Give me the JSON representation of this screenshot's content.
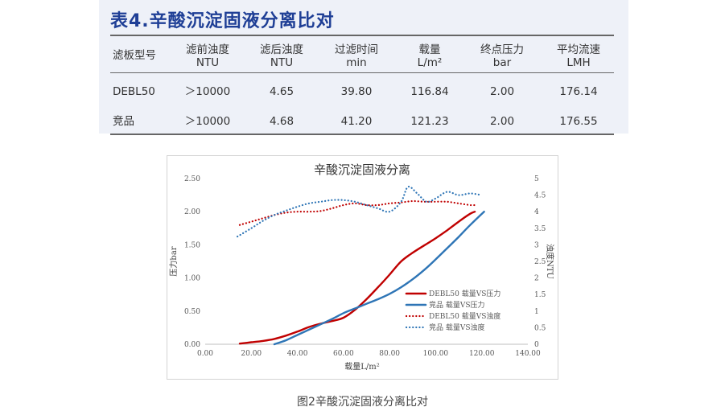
{
  "table": {
    "title": "表4.辛酸沉淀固液分离比对",
    "headers": [
      [
        "滤板型号"
      ],
      [
        "滤前浊度",
        "NTU"
      ],
      [
        "滤后浊度",
        "NTU"
      ],
      [
        "过滤时间",
        "min"
      ],
      [
        "载量",
        "L/m²"
      ],
      [
        "终点压力",
        "bar"
      ],
      [
        "平均流速",
        "LMH"
      ]
    ],
    "rows": [
      [
        "DEBL50",
        "＞10000",
        "4.65",
        "39.80",
        "116.84",
        "2.00",
        "176.14"
      ],
      [
        "竞品",
        "＞10000",
        "4.68",
        "41.20",
        "121.23",
        "2.00",
        "176.55"
      ]
    ]
  },
  "chart_data": {
    "type": "line",
    "title": "辛酸沉淀固液分离",
    "xlabel": "载量L/m²",
    "ylabel": "压力bar",
    "y2label": "浊度NTU",
    "xlim": [
      0,
      140
    ],
    "ylim": [
      0,
      2.5
    ],
    "y2lim": [
      0,
      5
    ],
    "x_ticks": [
      "0.00",
      "20.00",
      "40.00",
      "60.00",
      "80.00",
      "100.00",
      "120.00",
      "140.00"
    ],
    "y_ticks": [
      "0.00",
      "0.50",
      "1.00",
      "1.50",
      "2.00",
      "2.50"
    ],
    "y2_ticks": [
      "0",
      "0.5",
      "1",
      "1.5",
      "2",
      "2.5",
      "3",
      "3.5",
      "4",
      "4.5",
      "5"
    ],
    "grid": false,
    "legend_position": "right",
    "series": [
      {
        "name": "DEBL50 载量VS压力",
        "axis": "left",
        "style": "solid",
        "color": "#c00000",
        "x": [
          15,
          20,
          25,
          30,
          35,
          40,
          45,
          50,
          55,
          60,
          65,
          70,
          75,
          80,
          85,
          90,
          95,
          100,
          105,
          110,
          115,
          117
        ],
        "y": [
          0.01,
          0.03,
          0.05,
          0.08,
          0.13,
          0.19,
          0.26,
          0.31,
          0.35,
          0.4,
          0.52,
          0.68,
          0.86,
          1.05,
          1.25,
          1.38,
          1.49,
          1.6,
          1.72,
          1.85,
          1.97,
          2.0
        ]
      },
      {
        "name": "竞品 载量VS压力",
        "axis": "left",
        "style": "solid",
        "color": "#2e75b6",
        "x": [
          30,
          35,
          40,
          45,
          50,
          55,
          60,
          65,
          70,
          75,
          80,
          85,
          90,
          95,
          100,
          105,
          110,
          115,
          121
        ],
        "y": [
          0.0,
          0.06,
          0.14,
          0.22,
          0.3,
          0.38,
          0.47,
          0.54,
          0.61,
          0.68,
          0.76,
          0.86,
          0.98,
          1.12,
          1.28,
          1.45,
          1.62,
          1.8,
          2.0
        ]
      },
      {
        "name": "DEBL50 载量VS浊度",
        "axis": "right",
        "style": "dotted",
        "color": "#c00000",
        "x": [
          15,
          20,
          25,
          30,
          35,
          40,
          45,
          50,
          55,
          60,
          65,
          70,
          75,
          80,
          85,
          90,
          95,
          100,
          105,
          110,
          115,
          117
        ],
        "y": [
          3.6,
          3.7,
          3.8,
          3.9,
          3.97,
          4.0,
          4.0,
          4.02,
          4.1,
          4.2,
          4.25,
          4.2,
          4.2,
          4.25,
          4.28,
          4.32,
          4.3,
          4.3,
          4.3,
          4.25,
          4.2,
          4.2
        ]
      },
      {
        "name": "竞品 载量VS浊度",
        "axis": "right",
        "style": "dotted",
        "color": "#2e75b6",
        "x": [
          14,
          20,
          25,
          30,
          35,
          40,
          45,
          50,
          55,
          60,
          65,
          70,
          75,
          80,
          85,
          88,
          92,
          96,
          100,
          105,
          110,
          115,
          120
        ],
        "y": [
          3.25,
          3.5,
          3.72,
          3.9,
          4.03,
          4.15,
          4.25,
          4.3,
          4.35,
          4.35,
          4.3,
          4.2,
          4.1,
          4.0,
          4.3,
          4.75,
          4.55,
          4.3,
          4.4,
          4.6,
          4.5,
          4.55,
          4.5
        ]
      }
    ]
  },
  "caption": "图2辛酸沉淀固液分离比对"
}
